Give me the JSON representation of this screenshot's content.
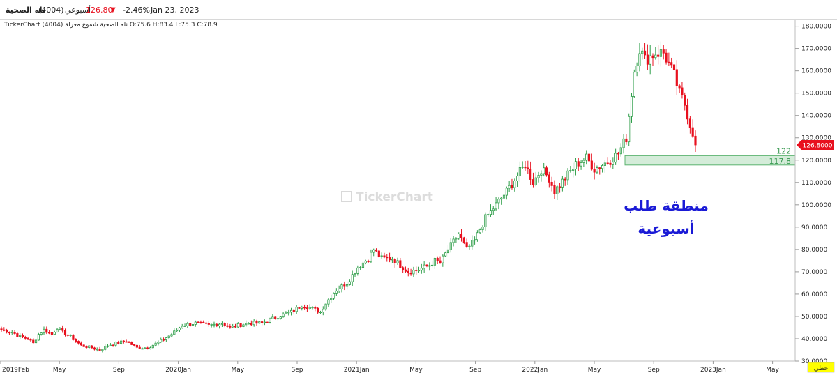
{
  "header": {
    "symbol_name": "نله الصحية",
    "symbol_code": "(4004)",
    "period": "أسبوعي",
    "price": "126.80",
    "change_arrow": "▼",
    "change_pct": "-2.46%",
    "date": "Jan 23, 2023"
  },
  "ohlc_line": "TickerChart نله الصحية شموع معزلة (4004) O:75.6 H:83.4 L:75.3 C:78.9",
  "watermark": "TickerChart",
  "annotation": {
    "line1": "منطقة طلب",
    "line2": "أسبوعية"
  },
  "zone": {
    "upper": 122,
    "lower": 117.8,
    "upper_label": "122",
    "lower_label": "117.8"
  },
  "last_price_tag": "126.8000",
  "corner_label": "خطي",
  "colors": {
    "up": "#2e9e49",
    "up_fill": "#ffffff",
    "down": "#e8101e",
    "zone_fill": "#d4ecd9",
    "zone_stroke": "#5bb36f",
    "annotation": "#1a1ad6"
  },
  "chart_data": {
    "type": "candlestick",
    "x_tick_labels": [
      "2019Feb",
      "May",
      "Sep",
      "2020Jan",
      "May",
      "Sep",
      "2021Jan",
      "May",
      "Sep",
      "2022Jan",
      "May",
      "Sep",
      "2023Jan",
      "May"
    ],
    "y_tick_labels": [
      "30.0000",
      "40.0000",
      "50.0000",
      "60.0000",
      "70.0000",
      "80.0000",
      "90.0000",
      "100.0000",
      "110.0000",
      "120.0000",
      "130.0000",
      "140.0000",
      "150.0000",
      "160.0000",
      "170.0000",
      "180.0000"
    ],
    "ylim": [
      30,
      183
    ],
    "y_scale": "linear",
    "grid": false,
    "series_path": [
      [
        0,
        44
      ],
      [
        4,
        43
      ],
      [
        7,
        41
      ],
      [
        10,
        40
      ],
      [
        12,
        38
      ],
      [
        14,
        42
      ],
      [
        16,
        44
      ],
      [
        19,
        42
      ],
      [
        21,
        45
      ],
      [
        23,
        43
      ],
      [
        26,
        41
      ],
      [
        30,
        37
      ],
      [
        34,
        36
      ],
      [
        37,
        35
      ],
      [
        40,
        37
      ],
      [
        43,
        38
      ],
      [
        47,
        39
      ],
      [
        51,
        36
      ],
      [
        55,
        36
      ],
      [
        60,
        39
      ],
      [
        64,
        42
      ],
      [
        68,
        46
      ],
      [
        73,
        47
      ],
      [
        78,
        46
      ],
      [
        83,
        47
      ],
      [
        86,
        45
      ],
      [
        89,
        46
      ],
      [
        93,
        47
      ],
      [
        98,
        47
      ],
      [
        104,
        50
      ],
      [
        109,
        52
      ],
      [
        113,
        55
      ],
      [
        116,
        54
      ],
      [
        120,
        52
      ],
      [
        122,
        56
      ],
      [
        126,
        62
      ],
      [
        130,
        65
      ],
      [
        134,
        72
      ],
      [
        138,
        76
      ],
      [
        140,
        80
      ],
      [
        143,
        76
      ],
      [
        147,
        76
      ],
      [
        150,
        73
      ],
      [
        153,
        70
      ],
      [
        157,
        71
      ],
      [
        161,
        73
      ],
      [
        163,
        75
      ],
      [
        165,
        74
      ],
      [
        168,
        80
      ],
      [
        172,
        87
      ],
      [
        175,
        80
      ],
      [
        178,
        84
      ],
      [
        182,
        94
      ],
      [
        186,
        100
      ],
      [
        190,
        106
      ],
      [
        194,
        113
      ],
      [
        197,
        118
      ],
      [
        200,
        110
      ],
      [
        203,
        116
      ],
      [
        206,
        112
      ],
      [
        208,
        106
      ],
      [
        212,
        112
      ],
      [
        216,
        118
      ],
      [
        220,
        121
      ],
      [
        223,
        116
      ],
      [
        226,
        118
      ],
      [
        229,
        120
      ],
      [
        232,
        123
      ],
      [
        235,
        130
      ],
      [
        238,
        160
      ],
      [
        240,
        170
      ],
      [
        242,
        165
      ],
      [
        246,
        168
      ],
      [
        249,
        168
      ],
      [
        251,
        163
      ],
      [
        253,
        158
      ],
      [
        255,
        150
      ],
      [
        257,
        145
      ],
      [
        259,
        136
      ],
      [
        261,
        129
      ]
    ],
    "last_close": 126.8
  }
}
